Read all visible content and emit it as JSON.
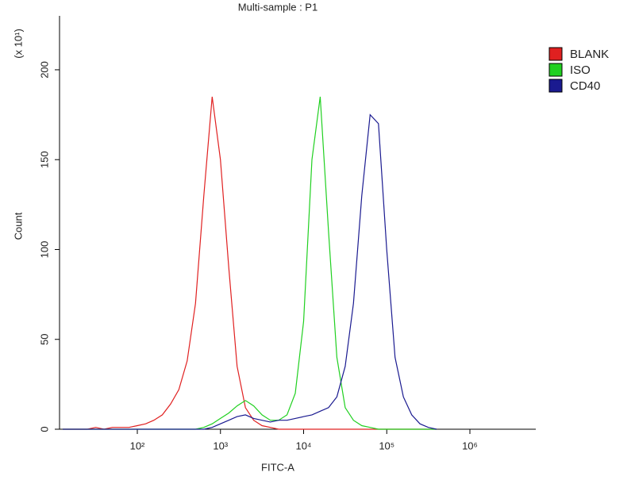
{
  "chart_data": {
    "type": "line",
    "title": "Multi-sample : P1",
    "x_label": "FITC-A",
    "y_label": "Count",
    "y_multiplier": "(x 10¹)",
    "x_log": true,
    "legend": "right",
    "x": [
      12.6,
      15.8,
      20,
      25.1,
      31.6,
      39.8,
      50.1,
      63.1,
      79.4,
      100,
      126,
      158,
      200,
      251,
      316,
      398,
      501,
      631,
      794,
      1000,
      1259,
      1585,
      1995,
      2512,
      3162,
      3981,
      5012,
      6310,
      7943,
      10000,
      12589,
      15849,
      19953,
      25119,
      31623,
      39811,
      50119,
      63096,
      79433,
      100000,
      125893,
      158489,
      199526,
      251189,
      316228,
      398107
    ],
    "series": [
      {
        "name": "BLANK",
        "color": "#e02020",
        "values": [
          0,
          0,
          0,
          0,
          1,
          0,
          1,
          1,
          1,
          2,
          3,
          5,
          8,
          14,
          22,
          38,
          70,
          130,
          185,
          150,
          90,
          35,
          12,
          5,
          2,
          1,
          0,
          0,
          0,
          0,
          0,
          0,
          0,
          0,
          0,
          0,
          0,
          0,
          0,
          0,
          0,
          0,
          0,
          0,
          0,
          0
        ]
      },
      {
        "name": "ISO",
        "color": "#20d020",
        "values": [
          0,
          0,
          0,
          0,
          0,
          0,
          0,
          0,
          0,
          0,
          0,
          0,
          0,
          0,
          0,
          0,
          0,
          1,
          3,
          6,
          9,
          13,
          16,
          13,
          8,
          5,
          5,
          8,
          20,
          60,
          150,
          185,
          110,
          40,
          12,
          5,
          2,
          1,
          0,
          0,
          0,
          0,
          0,
          0,
          0,
          0
        ]
      },
      {
        "name": "CD40",
        "color": "#1a1a90",
        "values": [
          0,
          0,
          0,
          0,
          0,
          0,
          0,
          0,
          0,
          0,
          0,
          0,
          0,
          0,
          0,
          0,
          0,
          0,
          1,
          3,
          5,
          7,
          8,
          6,
          5,
          4,
          5,
          5,
          6,
          7,
          8,
          10,
          12,
          18,
          35,
          70,
          130,
          175,
          170,
          100,
          40,
          18,
          8,
          3,
          1,
          0
        ]
      }
    ],
    "xlim": [
      11.6,
      6200000
    ],
    "xticks": [
      {
        "value": 100,
        "label": "10²"
      },
      {
        "value": 1000,
        "label": "10³"
      },
      {
        "value": 10000,
        "label": "10⁴"
      },
      {
        "value": 100000,
        "label": "10⁵"
      },
      {
        "value": 1000000,
        "label": "10⁶"
      }
    ],
    "ylim": [
      0,
      230
    ],
    "yticks": [
      0,
      50,
      100,
      150,
      200
    ]
  }
}
